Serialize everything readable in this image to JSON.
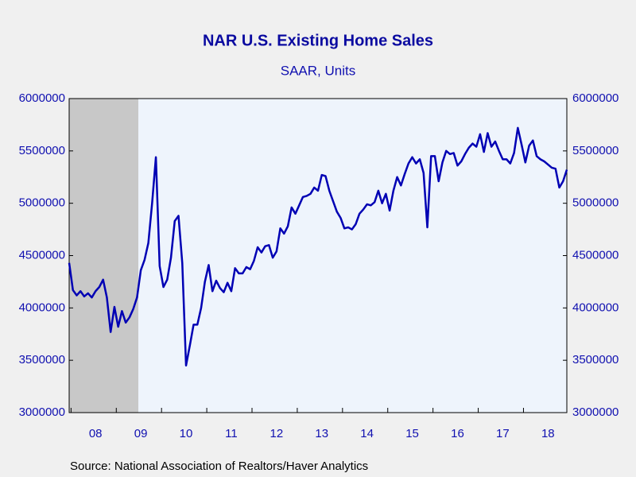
{
  "chart_data": {
    "type": "line",
    "title": "NAR U.S. Existing Home Sales",
    "subtitle": "SAAR, Units",
    "source": "Source:  National Association of Realtors/Haver Analytics",
    "categories": [
      null,
      null,
      null,
      null,
      null,
      null,
      null,
      "08",
      null,
      null,
      null,
      null,
      null,
      null,
      null,
      null,
      null,
      null,
      null,
      "09",
      null,
      null,
      null,
      null,
      null,
      null,
      null,
      null,
      null,
      null,
      null,
      "10",
      null,
      null,
      null,
      null,
      null,
      null,
      null,
      null,
      null,
      null,
      null,
      "11",
      null,
      null,
      null,
      null,
      null,
      null,
      null,
      null,
      null,
      null,
      null,
      "12",
      null,
      null,
      null,
      null,
      null,
      null,
      null,
      null,
      null,
      null,
      null,
      "13",
      null,
      null,
      null,
      null,
      null,
      null,
      null,
      null,
      null,
      null,
      null,
      "14",
      null,
      null,
      null,
      null,
      null,
      null,
      null,
      null,
      null,
      null,
      null,
      "15",
      null,
      null,
      null,
      null,
      null,
      null,
      null,
      null,
      null,
      null,
      null,
      "16",
      null,
      null,
      null,
      null,
      null,
      null,
      null,
      null,
      null,
      null,
      null,
      "17",
      null,
      null,
      null,
      null,
      null,
      null,
      null,
      null,
      null,
      null,
      null,
      "18",
      null,
      null,
      null,
      null,
      null
    ],
    "series": [
      {
        "color": "#0000b4",
        "values": [
          4430000,
          4170000,
          4120000,
          4160000,
          4110000,
          4140000,
          4100000,
          4160000,
          4200000,
          4270000,
          4100000,
          3770000,
          4010000,
          3820000,
          3970000,
          3860000,
          3910000,
          3990000,
          4100000,
          4360000,
          4460000,
          4620000,
          5000000,
          5440000,
          4400000,
          4200000,
          4270000,
          4480000,
          4830000,
          4880000,
          4430000,
          3450000,
          3640000,
          3840000,
          3840000,
          4000000,
          4250000,
          4410000,
          4160000,
          4260000,
          4190000,
          4150000,
          4240000,
          4160000,
          4380000,
          4330000,
          4330000,
          4390000,
          4370000,
          4450000,
          4580000,
          4530000,
          4590000,
          4600000,
          4480000,
          4540000,
          4760000,
          4710000,
          4780000,
          4960000,
          4900000,
          4980000,
          5060000,
          5070000,
          5090000,
          5150000,
          5120000,
          5270000,
          5260000,
          5120000,
          5020000,
          4920000,
          4860000,
          4760000,
          4770000,
          4750000,
          4800000,
          4900000,
          4940000,
          4990000,
          4980000,
          5010000,
          5120000,
          5000000,
          5090000,
          4930000,
          5120000,
          5250000,
          5170000,
          5280000,
          5380000,
          5440000,
          5380000,
          5420000,
          5290000,
          4770000,
          5450000,
          5450000,
          5210000,
          5390000,
          5500000,
          5470000,
          5480000,
          5360000,
          5400000,
          5470000,
          5530000,
          5570000,
          5540000,
          5660000,
          5490000,
          5670000,
          5540000,
          5590000,
          5500000,
          5420000,
          5420000,
          5380000,
          5480000,
          5720000,
          5560000,
          5390000,
          5550000,
          5600000,
          5450000,
          5420000,
          5400000,
          5370000,
          5340000,
          5330000,
          5150000,
          5210000,
          5320000
        ]
      }
    ],
    "ylim": [
      3000000,
      6000000
    ],
    "yticks": [
      3000000,
      3500000,
      4000000,
      4500000,
      5000000,
      5500000,
      6000000
    ]
  }
}
